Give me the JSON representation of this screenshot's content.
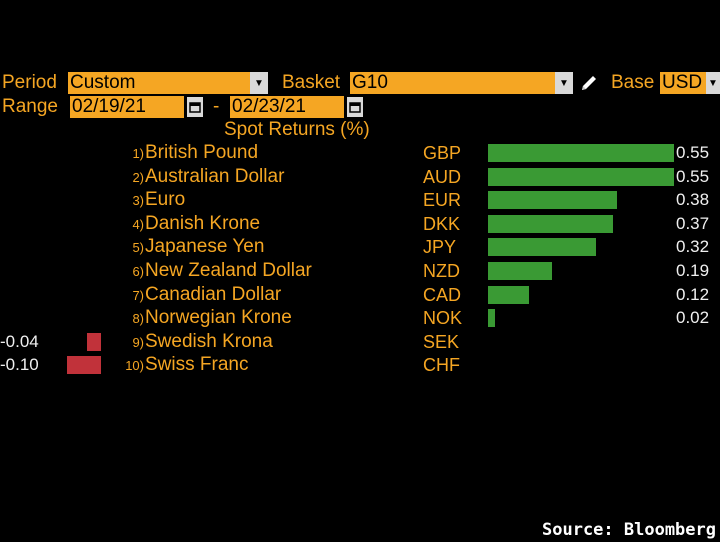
{
  "header": {
    "period_label": "Period",
    "period_value": "Custom",
    "basket_label": "Basket",
    "basket_value": "G10",
    "base_label": "Base",
    "base_value": "USD",
    "range_label": "Range",
    "range_start": "02/19/21",
    "range_sep": "-",
    "range_end": "02/23/21"
  },
  "title": "Spot Returns (%)",
  "source": "Source: Bloomberg",
  "colors": {
    "accent": "#f5a623",
    "positive": "#3a9a34",
    "negative": "#c1323a",
    "value_text": "#f0f0f0"
  },
  "chart_data": {
    "type": "bar",
    "title": "Spot Returns (%)",
    "categories": [
      "British Pound",
      "Australian Dollar",
      "Euro",
      "Danish Krone",
      "Japanese Yen",
      "New Zealand Dollar",
      "Canadian Dollar",
      "Norwegian Krone",
      "Swedish Krona",
      "Swiss Franc"
    ],
    "values": [
      0.55,
      0.55,
      0.38,
      0.37,
      0.32,
      0.19,
      0.12,
      0.02,
      -0.04,
      -0.1
    ],
    "xlabel": "",
    "ylabel": ""
  },
  "rows": [
    {
      "rank": "1)",
      "name": "British Pound",
      "code": "GBP",
      "value": 0.55,
      "label": "0.55"
    },
    {
      "rank": "2)",
      "name": "Australian Dollar",
      "code": "AUD",
      "value": 0.55,
      "label": "0.55"
    },
    {
      "rank": "3)",
      "name": "Euro",
      "code": "EUR",
      "value": 0.38,
      "label": "0.38"
    },
    {
      "rank": "4)",
      "name": "Danish Krone",
      "code": "DKK",
      "value": 0.37,
      "label": "0.37"
    },
    {
      "rank": "5)",
      "name": "Japanese Yen",
      "code": "JPY",
      "value": 0.32,
      "label": "0.32"
    },
    {
      "rank": "6)",
      "name": "New Zealand Dollar",
      "code": "NZD",
      "value": 0.19,
      "label": "0.19"
    },
    {
      "rank": "7)",
      "name": "Canadian Dollar",
      "code": "CAD",
      "value": 0.12,
      "label": "0.12"
    },
    {
      "rank": "8)",
      "name": "Norwegian Krone",
      "code": "NOK",
      "value": 0.02,
      "label": "0.02"
    },
    {
      "rank": "9)",
      "name": "Swedish Krona",
      "code": "SEK",
      "value": -0.04,
      "label": "-0.04"
    },
    {
      "rank": "10)",
      "name": "Swiss Franc",
      "code": "CHF",
      "value": -0.1,
      "label": "-0.10"
    }
  ]
}
